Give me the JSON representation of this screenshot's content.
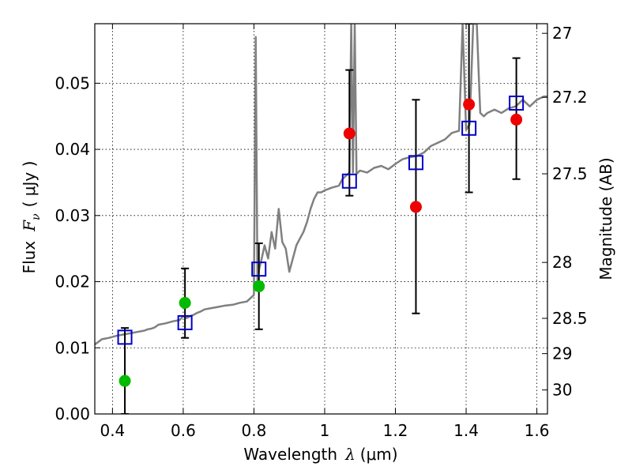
{
  "chart_data": {
    "type": "scatter",
    "xlabel": {
      "prefix": "Wavelength",
      "symbol": "λ",
      "unit": "(μm)"
    },
    "ylabel": {
      "prefix": "Flux",
      "symbol": "F",
      "subscript": "ν",
      "unit": "(  μJy  )"
    },
    "y2label": "Magnitude (AB)",
    "xlim": [
      0.35,
      1.63
    ],
    "ylim": [
      0.0,
      0.059
    ],
    "grid": true,
    "x_ticks": [
      {
        "value": 0.4,
        "label": "0.4"
      },
      {
        "value": 0.6,
        "label": "0.6"
      },
      {
        "value": 0.8,
        "label": "0.8"
      },
      {
        "value": 1.0,
        "label": "1"
      },
      {
        "value": 1.2,
        "label": "1.2"
      },
      {
        "value": 1.4,
        "label": "1.4"
      },
      {
        "value": 1.6,
        "label": "1.6"
      }
    ],
    "y_ticks": [
      {
        "value": 0.0,
        "label": "0.00"
      },
      {
        "value": 0.01,
        "label": "0.01"
      },
      {
        "value": 0.02,
        "label": "0.02"
      },
      {
        "value": 0.03,
        "label": "0.03"
      },
      {
        "value": 0.04,
        "label": "0.04"
      },
      {
        "value": 0.05,
        "label": "0.05"
      }
    ],
    "mag_ticks": [
      {
        "mag": 27,
        "label": "27"
      },
      {
        "mag": 27.2,
        "label": "27.2"
      },
      {
        "mag": 27.5,
        "label": "27.5"
      },
      {
        "mag": 28,
        "label": "28"
      },
      {
        "mag": 28.5,
        "label": "28.5"
      },
      {
        "mag": 29,
        "label": "29"
      },
      {
        "mag": 30,
        "label": "30"
      }
    ],
    "model_spectrum": {
      "color": "#808080",
      "x": [
        0.35,
        0.37,
        0.39,
        0.41,
        0.43,
        0.45,
        0.47,
        0.49,
        0.5,
        0.51,
        0.52,
        0.53,
        0.55,
        0.57,
        0.59,
        0.6,
        0.61,
        0.62,
        0.63,
        0.64,
        0.65,
        0.66,
        0.68,
        0.7,
        0.72,
        0.74,
        0.76,
        0.78,
        0.8,
        0.805,
        0.81,
        0.815,
        0.82,
        0.83,
        0.84,
        0.85,
        0.86,
        0.87,
        0.88,
        0.89,
        0.9,
        0.91,
        0.92,
        0.93,
        0.94,
        0.95,
        0.96,
        0.97,
        0.98,
        0.99,
        1.0,
        1.02,
        1.04,
        1.05,
        1.06,
        1.07,
        1.075,
        1.08,
        1.085,
        1.09,
        1.1,
        1.12,
        1.14,
        1.16,
        1.18,
        1.2,
        1.22,
        1.24,
        1.26,
        1.28,
        1.3,
        1.32,
        1.34,
        1.36,
        1.38,
        1.39,
        1.4,
        1.41,
        1.42,
        1.43,
        1.44,
        1.45,
        1.46,
        1.48,
        1.5,
        1.52,
        1.54,
        1.56,
        1.58,
        1.6,
        1.62,
        1.63
      ],
      "y": [
        0.0105,
        0.0113,
        0.0115,
        0.0118,
        0.012,
        0.0122,
        0.0124,
        0.0126,
        0.0128,
        0.0129,
        0.0131,
        0.0135,
        0.0137,
        0.014,
        0.0142,
        0.0148,
        0.0145,
        0.0148,
        0.015,
        0.0153,
        0.0155,
        0.0158,
        0.016,
        0.0162,
        0.0164,
        0.0165,
        0.0168,
        0.017,
        0.018,
        0.057,
        0.02,
        0.022,
        0.023,
        0.0255,
        0.0235,
        0.0275,
        0.025,
        0.031,
        0.026,
        0.025,
        0.0215,
        0.0235,
        0.0255,
        0.0265,
        0.0275,
        0.029,
        0.031,
        0.0325,
        0.0335,
        0.0335,
        0.0338,
        0.0342,
        0.0345,
        0.0355,
        0.036,
        0.0365,
        0.059,
        0.0365,
        0.059,
        0.0363,
        0.0368,
        0.0365,
        0.0372,
        0.0375,
        0.037,
        0.0378,
        0.0385,
        0.0388,
        0.039,
        0.0395,
        0.0405,
        0.041,
        0.0415,
        0.0425,
        0.0428,
        0.059,
        0.043,
        0.0438,
        0.059,
        0.059,
        0.0455,
        0.045,
        0.0455,
        0.046,
        0.0455,
        0.0462,
        0.0465,
        0.0475,
        0.0465,
        0.0475,
        0.048,
        0.048
      ]
    },
    "series": [
      {
        "name": "model_photometry",
        "marker": "open-square",
        "color": "#0000cc",
        "points": [
          {
            "x": 0.435,
            "y": 0.0116
          },
          {
            "x": 0.605,
            "y": 0.0138
          },
          {
            "x": 0.814,
            "y": 0.0219
          },
          {
            "x": 1.07,
            "y": 0.0352
          },
          {
            "x": 1.258,
            "y": 0.038
          },
          {
            "x": 1.408,
            "y": 0.0432
          },
          {
            "x": 1.542,
            "y": 0.047
          }
        ]
      },
      {
        "name": "observed_optical",
        "marker": "filled-circle",
        "color": "#00bb00",
        "points": [
          {
            "x": 0.435,
            "y": 0.005,
            "err_low": 0.0,
            "err_high": 0.013
          },
          {
            "x": 0.605,
            "y": 0.0168,
            "err_low": 0.0115,
            "err_high": 0.022
          },
          {
            "x": 0.814,
            "y": 0.0193,
            "err_low": 0.0128,
            "err_high": 0.0258
          }
        ]
      },
      {
        "name": "observed_nir",
        "marker": "filled-circle",
        "color": "#ee0000",
        "points": [
          {
            "x": 1.07,
            "y": 0.0424,
            "err_low": 0.033,
            "err_high": 0.052
          },
          {
            "x": 1.258,
            "y": 0.0313,
            "err_low": 0.0152,
            "err_high": 0.0475
          },
          {
            "x": 1.408,
            "y": 0.0468,
            "err_low": 0.0335,
            "err_high": 0.059
          },
          {
            "x": 1.542,
            "y": 0.0445,
            "err_low": 0.0355,
            "err_high": 0.0538
          }
        ]
      }
    ]
  }
}
